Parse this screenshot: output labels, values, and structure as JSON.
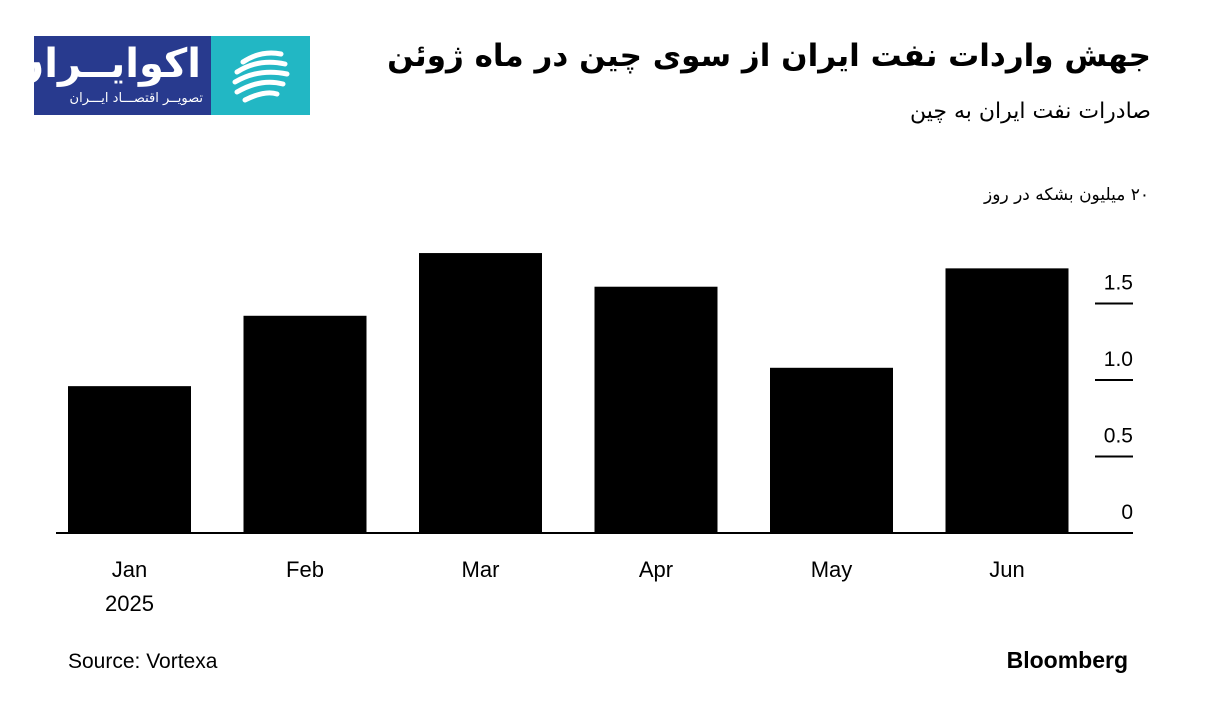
{
  "logo": {
    "name": "اکوایــران",
    "tagline": "تصویــر اقتصـــاد ایـــران",
    "brand_color": "#283a8e",
    "accent_color": "#22b7c4"
  },
  "header": {
    "title": "جهش واردات نفت ایران از سوی چین در ماه ژوئن",
    "subtitle": "صادرات نفت ایران به چین"
  },
  "footer": {
    "source": "Source: Vortexa",
    "brand": "Bloomberg"
  },
  "chart_data": {
    "type": "bar",
    "unit_label": "۲۰ میلیون بشکه در روز",
    "categories": [
      "Jan",
      "Feb",
      "Mar",
      "Apr",
      "May",
      "Jun"
    ],
    "category_sublabels": [
      "2025",
      "",
      "",
      "",
      "",
      ""
    ],
    "values": [
      0.96,
      1.42,
      1.83,
      1.61,
      1.08,
      1.73
    ],
    "ylim": [
      0,
      1.85
    ],
    "yticks": [
      0,
      0.5,
      1.0,
      1.5
    ],
    "ytick_labels": [
      "0",
      "0.5",
      "1.0",
      "1.5"
    ],
    "bar_color": "#000000",
    "grid": false,
    "y_axis_position": "right"
  }
}
